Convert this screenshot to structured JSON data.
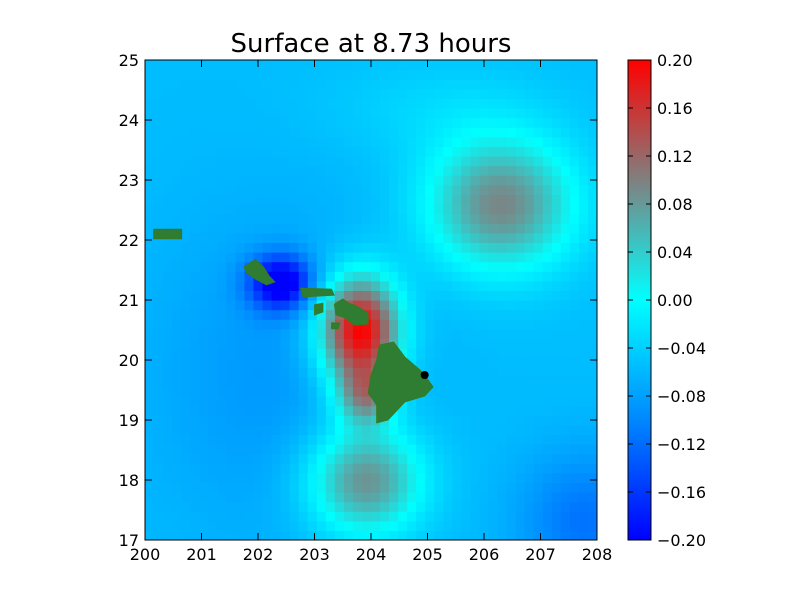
{
  "chart_data": {
    "type": "heatmap",
    "title": "Surface at 8.73 hours",
    "xlabel": "",
    "ylabel": "",
    "xlim": [
      200,
      208
    ],
    "ylim": [
      17,
      25
    ],
    "x_ticks": [
      "200",
      "201",
      "202",
      "203",
      "204",
      "205",
      "206",
      "207",
      "208"
    ],
    "y_ticks": [
      "17",
      "18",
      "19",
      "20",
      "21",
      "22",
      "23",
      "24",
      "25"
    ],
    "grid": false,
    "colorbar": {
      "range": [
        -0.2,
        0.2
      ],
      "ticks": [
        "0.20",
        "0.16",
        "0.12",
        "0.08",
        "0.04",
        "0.00",
        "−0.04",
        "−0.08",
        "−0.12",
        "−0.16",
        "−0.20"
      ],
      "tick_values": [
        0.2,
        0.16,
        0.12,
        0.08,
        0.04,
        0.0,
        -0.04,
        -0.08,
        -0.12,
        -0.16,
        -0.2
      ],
      "colors": [
        "#0000ff",
        "#0088ff",
        "#00ffff",
        "#808080",
        "#ff0000"
      ]
    },
    "land_color": "#2e7d32",
    "gauge_marker": {
      "x": 204.95,
      "y": 19.75,
      "color": "#000000"
    },
    "features": [
      {
        "name": "negative-anomaly",
        "x": 202.4,
        "y": 21.3,
        "value": -0.2
      },
      {
        "name": "positive-anomaly-maui",
        "x": 203.7,
        "y": 20.8,
        "value": 0.2
      },
      {
        "name": "positive-anomaly-south",
        "x": 203.9,
        "y": 19.6,
        "value": 0.2
      },
      {
        "name": "positive-anomaly-ne",
        "x": 206.3,
        "y": 22.5,
        "value": 0.09
      },
      {
        "name": "positive-anomaly-sw",
        "x": 203.8,
        "y": 18.0,
        "value": 0.09
      }
    ],
    "islands": [
      {
        "name": "niihau",
        "points": [
          [
            200.15,
            22.18
          ],
          [
            200.65,
            22.18
          ],
          [
            200.65,
            22.02
          ],
          [
            200.15,
            22.02
          ]
        ]
      },
      {
        "name": "oahu",
        "points": [
          [
            201.75,
            21.55
          ],
          [
            201.95,
            21.68
          ],
          [
            202.1,
            21.55
          ],
          [
            202.2,
            21.4
          ],
          [
            202.3,
            21.3
          ],
          [
            202.15,
            21.25
          ],
          [
            201.95,
            21.35
          ],
          [
            201.8,
            21.45
          ]
        ]
      },
      {
        "name": "molokai",
        "points": [
          [
            202.75,
            21.2
          ],
          [
            203.3,
            21.18
          ],
          [
            203.35,
            21.08
          ],
          [
            202.8,
            21.05
          ]
        ]
      },
      {
        "name": "lanai",
        "points": [
          [
            203.0,
            20.92
          ],
          [
            203.15,
            20.95
          ],
          [
            203.15,
            20.8
          ],
          [
            203.0,
            20.75
          ]
        ]
      },
      {
        "name": "maui",
        "points": [
          [
            203.35,
            20.93
          ],
          [
            203.5,
            21.02
          ],
          [
            203.6,
            20.95
          ],
          [
            203.75,
            20.9
          ],
          [
            203.95,
            20.78
          ],
          [
            203.95,
            20.6
          ],
          [
            203.7,
            20.58
          ],
          [
            203.55,
            20.7
          ],
          [
            203.38,
            20.75
          ]
        ]
      },
      {
        "name": "kahoolawe",
        "points": [
          [
            203.3,
            20.62
          ],
          [
            203.45,
            20.62
          ],
          [
            203.42,
            20.52
          ],
          [
            203.3,
            20.52
          ]
        ]
      },
      {
        "name": "hawaii",
        "points": [
          [
            204.15,
            20.25
          ],
          [
            204.4,
            20.3
          ],
          [
            204.6,
            20.05
          ],
          [
            204.85,
            19.85
          ],
          [
            204.95,
            19.75
          ],
          [
            205.1,
            19.55
          ],
          [
            204.95,
            19.4
          ],
          [
            204.6,
            19.3
          ],
          [
            204.3,
            19.0
          ],
          [
            204.1,
            18.95
          ],
          [
            204.1,
            19.25
          ],
          [
            203.95,
            19.45
          ],
          [
            204.0,
            19.75
          ],
          [
            204.1,
            20.0
          ]
        ]
      }
    ]
  }
}
